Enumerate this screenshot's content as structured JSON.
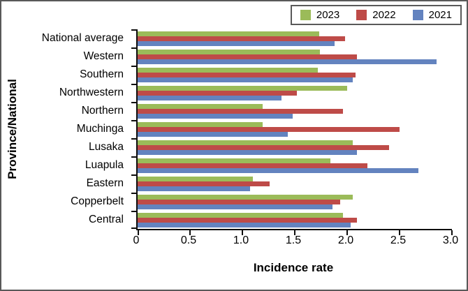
{
  "chart_data": {
    "type": "bar",
    "orientation": "horizontal",
    "title": "",
    "xlabel": "Incidence rate",
    "ylabel": "Province/National",
    "xlim": [
      0,
      3.0
    ],
    "xticks": [
      0,
      0.5,
      1.0,
      1.5,
      2.0,
      2.5,
      3.0
    ],
    "xtick_labels": [
      "0",
      "0.5",
      "1.0",
      "1.5",
      "2.0",
      "2.5",
      "3.0"
    ],
    "categories_order": "top-to-bottom",
    "categories": [
      "National average",
      "Western",
      "Southern",
      "Northwestern",
      "Northern",
      "Muchinga",
      "Lusaka",
      "Luapula",
      "Eastern",
      "Copperbelt",
      "Central"
    ],
    "series": [
      {
        "name": "2023",
        "color": "#9BBB59",
        "values": [
          1.73,
          1.74,
          1.72,
          2.0,
          1.19,
          1.19,
          2.05,
          1.84,
          1.1,
          2.05,
          1.96
        ]
      },
      {
        "name": "2022",
        "color": "#BE4B48",
        "values": [
          1.98,
          2.09,
          2.08,
          1.52,
          1.96,
          2.5,
          2.4,
          2.19,
          1.26,
          1.93,
          2.09
        ]
      },
      {
        "name": "2021",
        "color": "#6383BF",
        "values": [
          1.88,
          2.85,
          2.05,
          1.37,
          1.48,
          1.43,
          2.09,
          2.68,
          1.07,
          1.86,
          2.03
        ]
      }
    ],
    "bar_order_top_to_bottom": [
      "2023",
      "2022",
      "2021"
    ],
    "legend": {
      "position": "top-right",
      "entries": [
        "2023",
        "2022",
        "2021"
      ]
    },
    "grid": false,
    "axis_color": "#0d0d0d",
    "frame_border_color": "#595959"
  }
}
